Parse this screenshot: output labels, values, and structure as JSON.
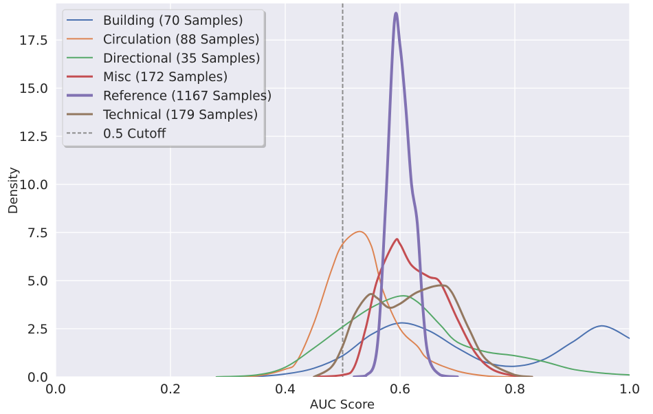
{
  "chart_data": {
    "type": "line",
    "title": "",
    "xlabel": "AUC Score",
    "ylabel": "Density",
    "xlim": [
      0.0,
      1.0
    ],
    "ylim": [
      0,
      19.4
    ],
    "grid": true,
    "legend_position": "top-left",
    "xticks": [
      "0.0",
      "0.2",
      "0.4",
      "0.6",
      "0.8",
      "1.0"
    ],
    "yticks": [
      "0.0",
      "2.5",
      "5.0",
      "7.5",
      "10.0",
      "12.5",
      "15.0",
      "17.5"
    ],
    "cutoff": {
      "name": "0.5 Cutoff",
      "x": 0.5,
      "color": "#8c8c8c",
      "style": "dashed"
    },
    "series": [
      {
        "name": "Building (70 Samples)",
        "color": "#4c72b0",
        "width": 2,
        "x": [
          0.28,
          0.35,
          0.4,
          0.45,
          0.5,
          0.55,
          0.6,
          0.65,
          0.7,
          0.75,
          0.8,
          0.85,
          0.9,
          0.95,
          1.0
        ],
        "y": [
          0,
          0.02,
          0.15,
          0.45,
          1.1,
          2.2,
          2.8,
          2.4,
          1.5,
          0.75,
          0.55,
          0.9,
          1.8,
          2.65,
          2.0
        ]
      },
      {
        "name": "Circulation (88 Samples)",
        "color": "#dd8452",
        "width": 2,
        "x": [
          0.28,
          0.35,
          0.4,
          0.42,
          0.45,
          0.48,
          0.5,
          0.53,
          0.55,
          0.57,
          0.6,
          0.63,
          0.65,
          0.7,
          0.75,
          0.8
        ],
        "y": [
          0,
          0.05,
          0.4,
          0.8,
          2.8,
          5.5,
          6.9,
          7.55,
          6.8,
          4.5,
          2.5,
          1.6,
          0.9,
          0.3,
          0.05,
          0
        ]
      },
      {
        "name": "Directional (35 Samples)",
        "color": "#55a868",
        "width": 2,
        "x": [
          0.28,
          0.35,
          0.4,
          0.45,
          0.5,
          0.55,
          0.6,
          0.63,
          0.67,
          0.7,
          0.75,
          0.8,
          0.85,
          0.9,
          0.95,
          1.0
        ],
        "y": [
          0,
          0.1,
          0.5,
          1.5,
          2.6,
          3.6,
          4.2,
          3.9,
          2.7,
          1.8,
          1.3,
          1.1,
          0.8,
          0.4,
          0.2,
          0.1
        ]
      },
      {
        "name": "Misc (172 Samples)",
        "color": "#c44e52",
        "width": 3,
        "x": [
          0.45,
          0.5,
          0.52,
          0.54,
          0.56,
          0.59,
          0.6,
          0.62,
          0.65,
          0.67,
          0.7,
          0.73,
          0.76,
          0.8,
          0.83
        ],
        "y": [
          0,
          0.1,
          0.5,
          2.5,
          5.0,
          7.0,
          6.9,
          5.8,
          5.2,
          4.9,
          3.0,
          1.3,
          0.4,
          0.05,
          0
        ]
      },
      {
        "name": "Reference (1167 Samples)",
        "color": "#8172b3",
        "width": 4,
        "x": [
          0.52,
          0.54,
          0.56,
          0.575,
          0.59,
          0.6,
          0.61,
          0.62,
          0.63,
          0.64,
          0.65,
          0.67,
          0.7
        ],
        "y": [
          0,
          0.05,
          1.5,
          9.0,
          18.4,
          17.2,
          14.0,
          10.0,
          8.0,
          3.5,
          1.0,
          0.1,
          0
        ]
      },
      {
        "name": "Technical (179 Samples)",
        "color": "#937860",
        "width": 3,
        "x": [
          0.45,
          0.48,
          0.5,
          0.52,
          0.545,
          0.56,
          0.58,
          0.6,
          0.63,
          0.67,
          0.69,
          0.72,
          0.75,
          0.8,
          0.83
        ],
        "y": [
          0,
          0.5,
          1.6,
          3.2,
          4.25,
          4.1,
          3.6,
          3.8,
          4.4,
          4.75,
          4.4,
          2.5,
          0.9,
          0.1,
          0
        ]
      }
    ]
  }
}
